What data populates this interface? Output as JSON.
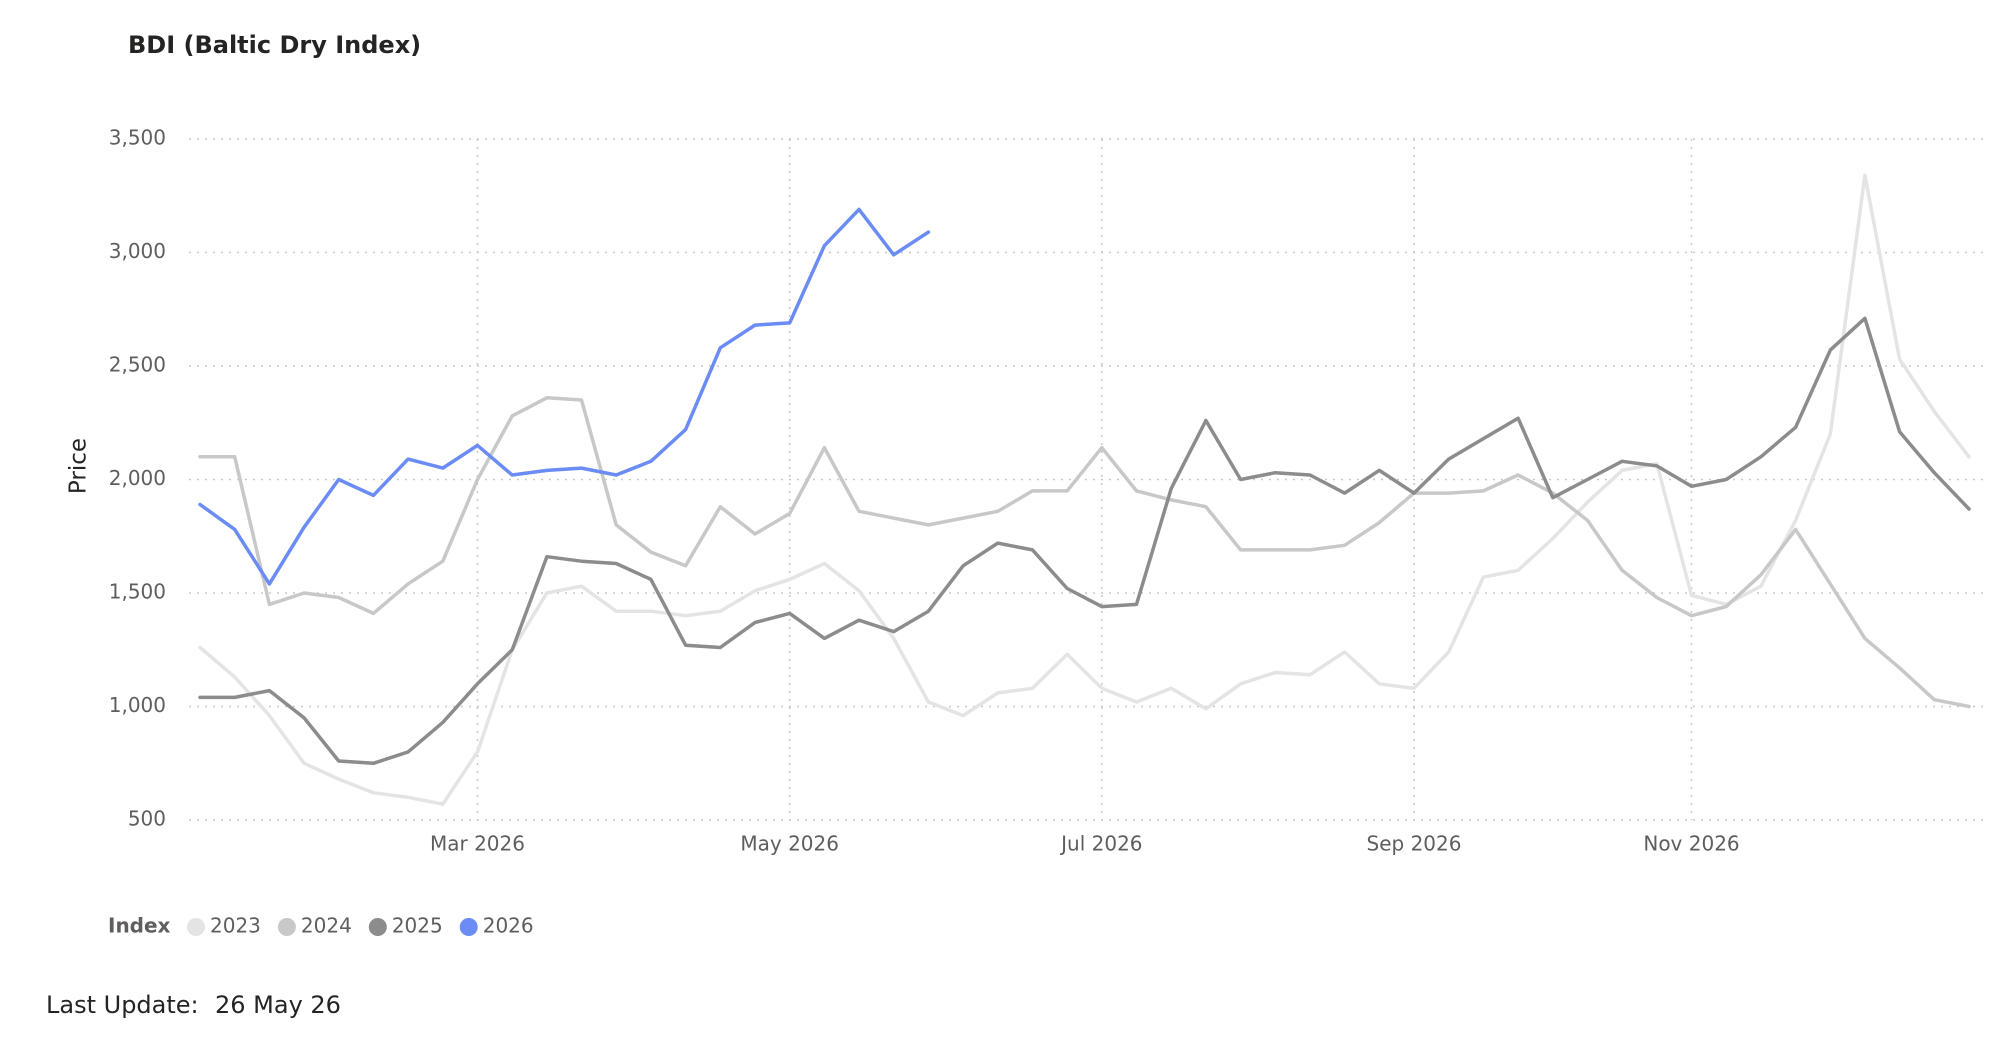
{
  "chart_data": {
    "type": "line",
    "title": "BDI (Baltic Dry Index)",
    "y_label": "Price",
    "categories": [
      null,
      null,
      null,
      null,
      null,
      null,
      null,
      null,
      "Mar 2026",
      null,
      null,
      null,
      null,
      null,
      null,
      null,
      null,
      "May 2026",
      null,
      null,
      null,
      null,
      null,
      null,
      null,
      null,
      "Jul 2026",
      null,
      null,
      null,
      null,
      null,
      null,
      null,
      null,
      "Sep 2026",
      null,
      null,
      null,
      null,
      null,
      null,
      null,
      "Nov 2026",
      null,
      null,
      null,
      null,
      null,
      null,
      null,
      null
    ],
    "ylim": [
      500,
      3500
    ],
    "yticks": [
      {
        "value": 500,
        "label": "500"
      },
      {
        "value": 1000,
        "label": "1,000"
      },
      {
        "value": 1500,
        "label": "1,500"
      },
      {
        "value": 2000,
        "label": "2,000"
      },
      {
        "value": 2500,
        "label": "2,500"
      },
      {
        "value": 3000,
        "label": "3,000"
      },
      {
        "value": 3500,
        "label": "3,500"
      }
    ],
    "grid": true,
    "legend_title": "Index",
    "series": [
      {
        "name": "2023",
        "color": "#e4e4e4",
        "values": [
          1260,
          1130,
          960,
          750,
          680,
          620,
          600,
          570,
          800,
          1250,
          1500,
          1530,
          1420,
          1420,
          1400,
          1420,
          1510,
          1560,
          1630,
          1510,
          1300,
          1020,
          960,
          1060,
          1080,
          1230,
          1080,
          1020,
          1080,
          990,
          1100,
          1150,
          1140,
          1240,
          1100,
          1080,
          1240,
          1570,
          1600,
          1740,
          1900,
          2040,
          2070,
          1490,
          1450,
          1530,
          1820,
          2200,
          3340,
          2530,
          2300,
          2100
        ]
      },
      {
        "name": "2024",
        "color": "#c8c8c8",
        "values": [
          2100,
          2100,
          1450,
          1500,
          1480,
          1410,
          1540,
          1640,
          2000,
          2280,
          2360,
          2350,
          1800,
          1680,
          1620,
          1880,
          1760,
          1850,
          2140,
          1860,
          1830,
          1800,
          1830,
          1860,
          1950,
          1950,
          2140,
          1950,
          1910,
          1880,
          1690,
          1690,
          1690,
          1710,
          1810,
          1940,
          1940,
          1950,
          2020,
          1940,
          1820,
          1600,
          1480,
          1400,
          1440,
          1580,
          1780,
          1540,
          1300,
          1170,
          1030,
          1000
        ]
      },
      {
        "name": "2025",
        "color": "#8c8c8c",
        "values": [
          1040,
          1040,
          1070,
          950,
          760,
          750,
          800,
          930,
          1100,
          1250,
          1660,
          1640,
          1630,
          1560,
          1270,
          1260,
          1370,
          1410,
          1300,
          1380,
          1330,
          1420,
          1620,
          1720,
          1690,
          1520,
          1440,
          1450,
          1960,
          2260,
          2000,
          2030,
          2020,
          1940,
          2040,
          1940,
          2090,
          2180,
          2270,
          1920,
          2000,
          2080,
          2060,
          1970,
          2000,
          2100,
          2230,
          2570,
          2710,
          2210,
          2030,
          1870
        ]
      },
      {
        "name": "2026",
        "color": "#6b8cf5",
        "values": [
          1890,
          1780,
          1540,
          1790,
          2000,
          1930,
          2090,
          2050,
          2150,
          2020,
          2040,
          2050,
          2020,
          2080,
          2220,
          2580,
          2680,
          2690,
          3030,
          3190,
          2990,
          3090,
          null,
          null,
          null,
          null,
          null,
          null,
          null,
          null,
          null,
          null,
          null,
          null,
          null,
          null,
          null,
          null,
          null,
          null,
          null,
          null,
          null,
          null,
          null,
          null,
          null,
          null,
          null,
          null,
          null,
          null
        ]
      }
    ]
  },
  "footer": {
    "label": "Last Update:",
    "value": "26 May 26"
  }
}
